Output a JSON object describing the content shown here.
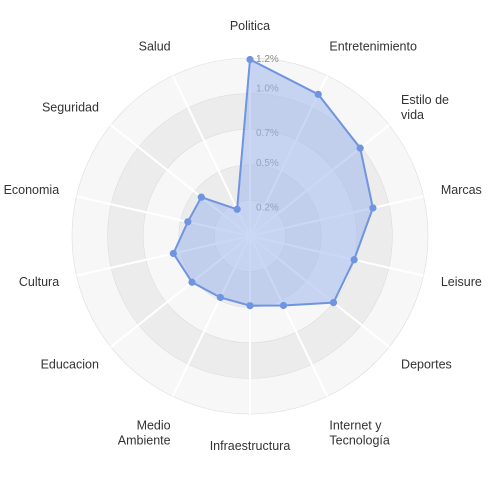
{
  "colors": {
    "ring_dark": "#ececec",
    "ring_light": "#f7f7f7",
    "spoke": "#ffffff",
    "ring_border": "#dddddd",
    "series_fill": "#9fb6ec",
    "series_stroke": "#6f94e0",
    "point": "#6f94e0"
  },
  "chart_data": {
    "type": "radar",
    "title": "",
    "categories": [
      [
        "Politica"
      ],
      [
        "Entretenimiento"
      ],
      [
        "Estilo de",
        "vida"
      ],
      [
        "Marcas"
      ],
      [
        "Leisure"
      ],
      [
        "Deportes"
      ],
      [
        "Internet y",
        "Tecnología"
      ],
      [
        "Infraestructura"
      ],
      [
        "Medio",
        "Ambiente"
      ],
      [
        "Educacion"
      ],
      [
        "Cultura"
      ],
      [
        "Economia"
      ],
      [
        "Seguridad"
      ],
      [
        "Salud"
      ]
    ],
    "series": [
      {
        "values": [
          1.19,
          1.06,
          0.95,
          0.85,
          0.72,
          0.72,
          0.52,
          0.47,
          0.46,
          0.5,
          0.53,
          0.43,
          0.42,
          0.2
        ]
      }
    ],
    "rlim": [
      0,
      1.2
    ],
    "ticks": [
      0.2,
      0.5,
      0.7,
      1.0,
      1.2
    ],
    "tick_labels": [
      "0.2%",
      "0.5%",
      "0.7%",
      "1.0%",
      "1.2%"
    ],
    "grid": true
  }
}
